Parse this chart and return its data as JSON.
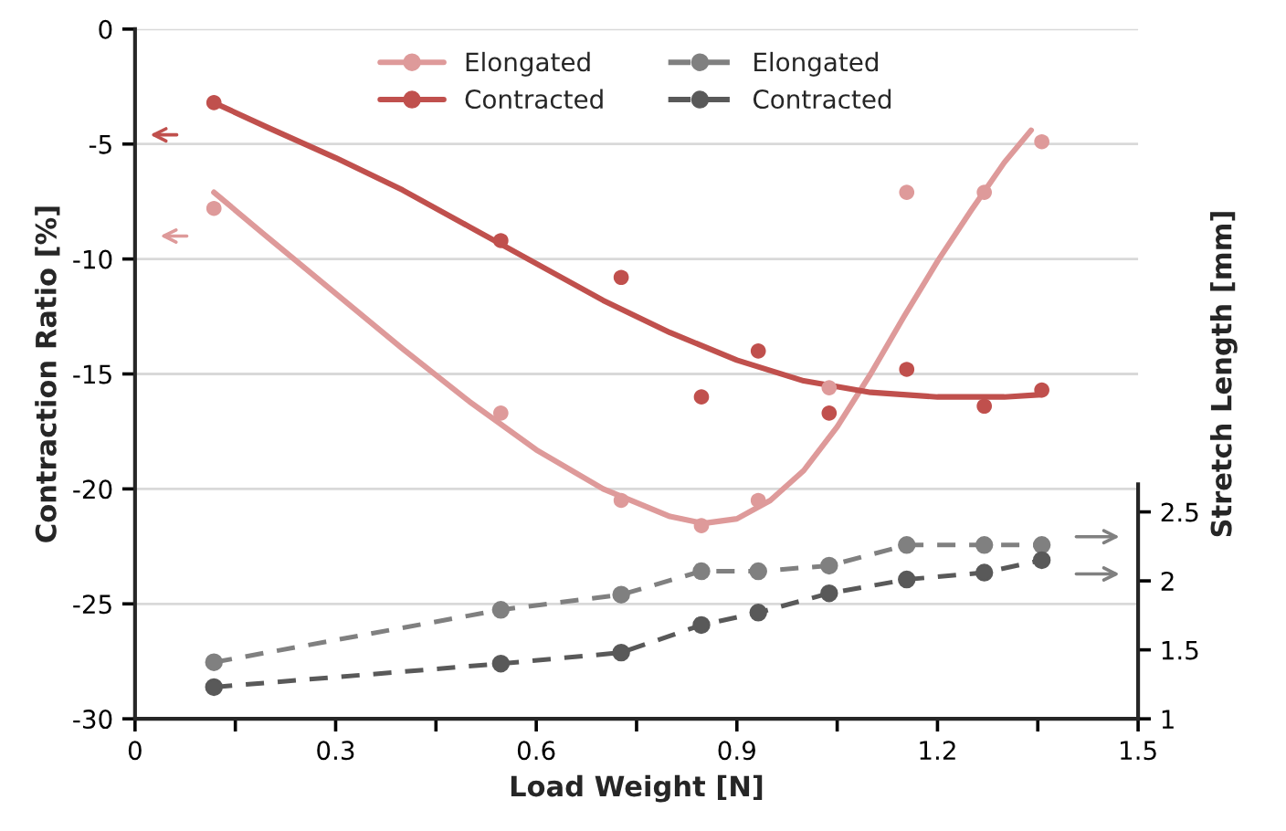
{
  "chart_data": {
    "type": "scatter",
    "xlabel": "Load Weight [N]",
    "ylabel": "Contraction Ratio [%]",
    "y2label": "Stretch Length [mm]",
    "xlim": [
      0,
      1.5
    ],
    "xticks": [
      0,
      {
        "value": 0.15,
        "label": null
      },
      0.3,
      {
        "value": 0.45,
        "label": null
      },
      0.6,
      {
        "value": 0.75,
        "label": null
      },
      0.9,
      {
        "value": 1.05,
        "label": null
      },
      1.2,
      {
        "value": 1.35,
        "label": null
      },
      1.5
    ],
    "ylim": [
      -30,
      0
    ],
    "yticks": [
      -30,
      -25,
      -20,
      -15,
      -10,
      -5,
      0
    ],
    "y2lim": [
      1,
      6
    ],
    "y2ticks": [
      1,
      1.5,
      2,
      2.5
    ],
    "grid": "y",
    "legend": "top",
    "series": [
      {
        "name": "Elongated",
        "color": "#de9a9a",
        "marker": "circle",
        "x": [
          0.118,
          0.547,
          0.727,
          0.847,
          0.932,
          1.038,
          1.154,
          1.27,
          1.356
        ],
        "values": [
          -7.8,
          -16.7,
          -20.5,
          -21.6,
          -20.5,
          -15.6,
          -7.1,
          -7.1,
          -4.9
        ]
      },
      {
        "name": "Contracted",
        "color": "#c0504d",
        "marker": "circle",
        "x": [
          0.118,
          0.547,
          0.727,
          0.847,
          0.932,
          1.038,
          1.154,
          1.27,
          1.356
        ],
        "values": [
          -3.2,
          -9.2,
          -10.8,
          -16.0,
          -14.0,
          -16.7,
          -14.8,
          -16.4,
          -15.7
        ]
      },
      {
        "name": "Elongated",
        "type": "line",
        "axis": "y2",
        "color": "#808080",
        "marker": "circle",
        "line_style": "dashed",
        "x": [
          0.118,
          0.547,
          0.727,
          0.847,
          0.932,
          1.038,
          1.154,
          1.27,
          1.356
        ],
        "values": [
          1.41,
          1.79,
          1.9,
          2.07,
          2.07,
          2.11,
          2.26,
          2.26,
          2.26
        ]
      },
      {
        "name": "Contracted",
        "type": "line",
        "axis": "y2",
        "color": "#595959",
        "marker": "circle",
        "line_style": "dashed",
        "x": [
          0.118,
          0.547,
          0.727,
          0.847,
          0.932,
          1.038,
          1.154,
          1.27,
          1.356
        ],
        "values": [
          1.23,
          1.4,
          1.48,
          1.68,
          1.77,
          1.91,
          2.01,
          2.06,
          2.15
        ]
      },
      {
        "type": "line",
        "color": "#de9a9a",
        "line_style": "solid",
        "marker": "none",
        "x": [
          0.118,
          0.2,
          0.3,
          0.4,
          0.5,
          0.6,
          0.7,
          0.8,
          0.85,
          0.9,
          0.95,
          1.0,
          1.05,
          1.1,
          1.15,
          1.2,
          1.25,
          1.3,
          1.34
        ],
        "values": [
          -7.1,
          -9.1,
          -11.5,
          -13.9,
          -16.2,
          -18.3,
          -20.0,
          -21.2,
          -21.5,
          -21.3,
          -20.5,
          -19.2,
          -17.3,
          -15.0,
          -12.5,
          -10.1,
          -7.9,
          -5.8,
          -4.4
        ]
      },
      {
        "type": "line",
        "color": "#c0504d",
        "line_style": "solid",
        "marker": "none",
        "x": [
          0.118,
          0.2,
          0.3,
          0.4,
          0.5,
          0.6,
          0.7,
          0.8,
          0.9,
          1.0,
          1.1,
          1.2,
          1.3,
          1.356
        ],
        "values": [
          -3.2,
          -4.3,
          -5.6,
          -7.0,
          -8.6,
          -10.2,
          -11.8,
          -13.2,
          -14.4,
          -15.3,
          -15.8,
          -16.0,
          -16.0,
          -15.9
        ]
      }
    ]
  }
}
